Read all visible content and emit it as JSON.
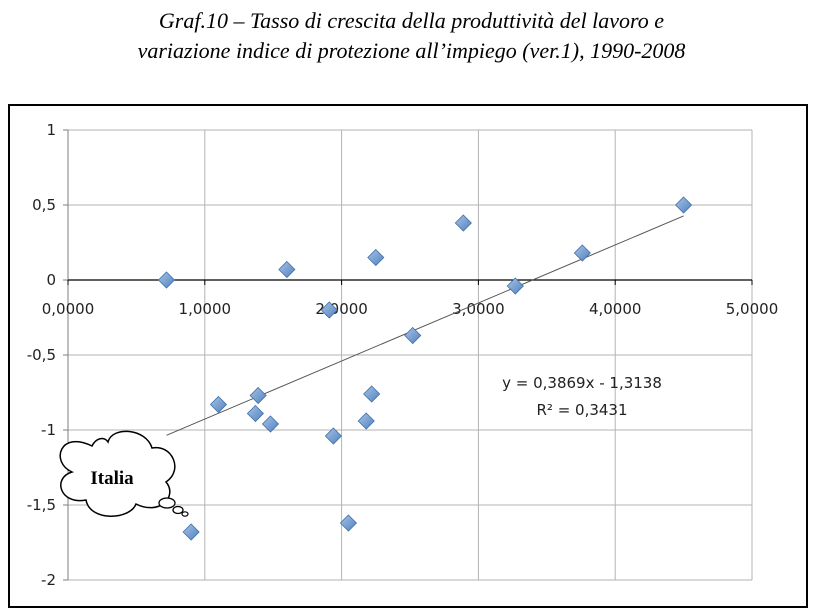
{
  "title_line1": "Graf.10 – Tasso di crescita della  produttività del lavoro e",
  "title_line2": "variazione indice di protezione all’impiego (ver.1), 1990-2008",
  "chart_data": {
    "type": "scatter",
    "xlim": [
      0,
      5
    ],
    "ylim": [
      -2,
      1
    ],
    "x_ticks": [
      0,
      1,
      2,
      3,
      4,
      5
    ],
    "x_tick_labels": [
      "0,0000",
      "1,0000",
      "2,0000",
      "3,0000",
      "4,0000",
      "5,0000"
    ],
    "y_ticks": [
      1,
      0.5,
      0,
      -0.5,
      -1,
      -1.5,
      -2
    ],
    "y_tick_labels": [
      "1",
      "0,5",
      "0",
      "-0,5",
      "-1",
      "-1,5",
      "-2"
    ],
    "grid": true,
    "marker_color": "#4f81bd",
    "points": [
      {
        "x": 0.72,
        "y": 0.0
      },
      {
        "x": 0.9,
        "y": -1.68
      },
      {
        "x": 1.1,
        "y": -0.83
      },
      {
        "x": 1.37,
        "y": -0.89
      },
      {
        "x": 1.39,
        "y": -0.77
      },
      {
        "x": 1.48,
        "y": -0.96
      },
      {
        "x": 1.6,
        "y": 0.07
      },
      {
        "x": 1.91,
        "y": -0.2
      },
      {
        "x": 1.94,
        "y": -1.04
      },
      {
        "x": 2.05,
        "y": -1.62
      },
      {
        "x": 2.18,
        "y": -0.94
      },
      {
        "x": 2.22,
        "y": -0.76
      },
      {
        "x": 2.25,
        "y": 0.15
      },
      {
        "x": 2.52,
        "y": -0.37
      },
      {
        "x": 2.89,
        "y": 0.38
      },
      {
        "x": 3.27,
        "y": -0.04
      },
      {
        "x": 3.76,
        "y": 0.18
      },
      {
        "x": 4.5,
        "y": 0.5
      }
    ],
    "trendline": {
      "slope": 0.3869,
      "intercept": -1.3138,
      "x_range": [
        0.72,
        4.5
      ],
      "color": "#555555",
      "equation": "y = 0,3869x - 1,3138",
      "r_squared": "R² = 0,3431"
    },
    "annotation": "Italia"
  }
}
